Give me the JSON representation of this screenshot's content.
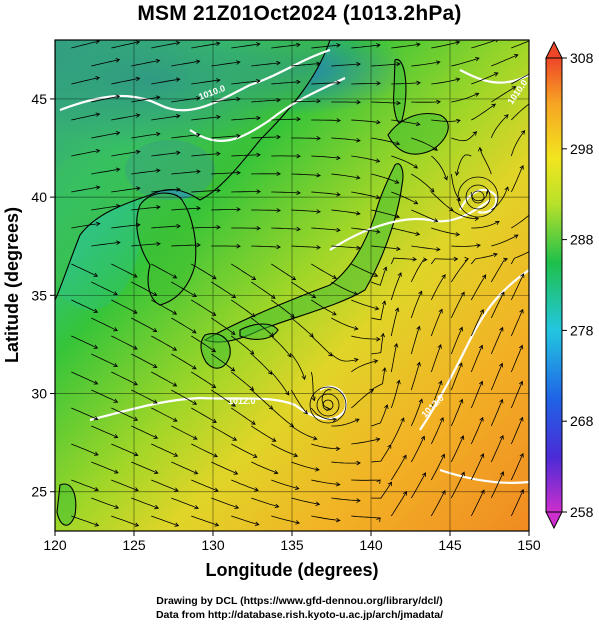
{
  "title": "MSM 21Z01Oct2024 (1013.2hPa)",
  "map": {
    "xlabel": "Longitude (degrees)",
    "ylabel": "Latitude  (degrees)",
    "lon_range": [
      120,
      150
    ],
    "lat_range": [
      23,
      48
    ],
    "lon_ticks": [
      "120",
      "125",
      "130",
      "135",
      "140",
      "145",
      "150"
    ],
    "lat_ticks": [
      "25",
      "30",
      "35",
      "40",
      "45"
    ],
    "grid": true,
    "field": "temperature (K) with streamlines",
    "contour_labels": [
      "1010.0",
      "1010.0",
      "1012.0",
      "1012.0"
    ]
  },
  "colorbar": {
    "range": [
      258,
      308
    ],
    "labels": [
      "308",
      "298",
      "288",
      "278",
      "268",
      "258"
    ],
    "stops": [
      "#cc2fcc",
      "#4b2bd6",
      "#1f64e6",
      "#23c6e0",
      "#1fc04a",
      "#b9e12a",
      "#f2e51f",
      "#f6a423",
      "#ee4628"
    ]
  },
  "credits": {
    "line1": "Drawing by DCL (https://www.gfd-dennou.org/library/dcl/)",
    "line2": "Data from http://database.rish.kyoto-u.ac.jp/arch/jmadata/"
  }
}
